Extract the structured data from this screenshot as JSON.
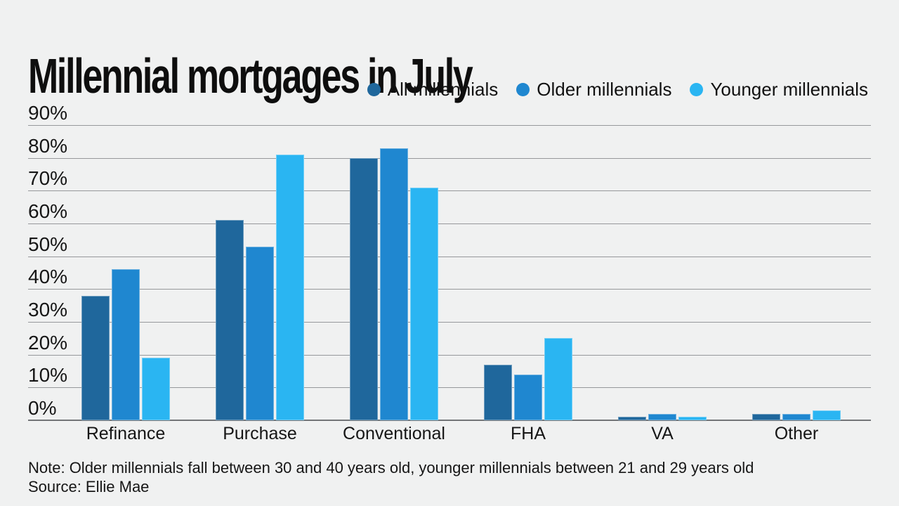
{
  "title": "Millennial mortgages in July",
  "note": "Note: Older millennials fall between 30 and 40 years old, younger millennials between 21 and 29 years old",
  "source": "Source: Ellie Mae",
  "colors": {
    "background": "#f0f1f1",
    "text": "#1a1a1a",
    "gridline": "#96989b",
    "baseline": "#737578",
    "series": [
      "#1f679c",
      "#1f87d0",
      "#2ab5f2"
    ]
  },
  "chart_data": {
    "type": "bar",
    "title": "Millennial mortgages in July",
    "categories": [
      "Refinance",
      "Purchase",
      "Conventional",
      "FHA",
      "VA",
      "Other"
    ],
    "series": [
      {
        "name": "All millennials",
        "color": "#1f679c",
        "values": [
          38,
          61,
          80,
          17,
          1,
          2
        ]
      },
      {
        "name": "Older millennials",
        "color": "#1f87d0",
        "values": [
          46,
          53,
          83,
          14,
          2,
          2
        ]
      },
      {
        "name": "Younger millennials",
        "color": "#2ab5f2",
        "values": [
          19,
          81,
          71,
          25,
          1,
          3
        ]
      }
    ],
    "xlabel": "",
    "ylabel": "",
    "ylim": [
      0,
      90
    ],
    "yticks": [
      0,
      10,
      20,
      30,
      40,
      50,
      60,
      70,
      80,
      90
    ],
    "ytick_suffix": "%",
    "grid": true,
    "legend_position": "top-right",
    "note": "Note: Older millennials fall between 30 and 40 years old, younger millennials between 21 and 29 years old",
    "source": "Source: Ellie Mae"
  }
}
